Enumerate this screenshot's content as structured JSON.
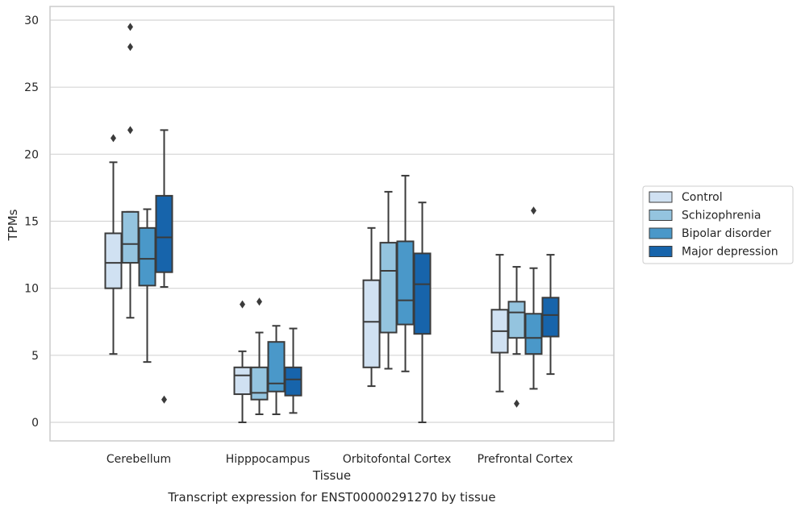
{
  "caption": "Transcript expression for ENST00000291270 by tissue",
  "chart_data": {
    "type": "boxplot",
    "xlabel": "Tissue",
    "ylabel": "TPMs",
    "ylim": [
      -1.3,
      31
    ],
    "yticks": [
      0,
      5,
      10,
      15,
      20,
      25,
      30
    ],
    "grid": "horizontal",
    "legend_position": "right",
    "categories": [
      "Cerebellum",
      "Hipppocampus",
      "Orbitofontal Cortex",
      "Prefrontal Cortex"
    ],
    "series": [
      {
        "name": "Control",
        "color": "#d0e1f2",
        "boxes": [
          {
            "whisker_low": 5.1,
            "q1": 10.0,
            "median": 11.9,
            "q3": 14.1,
            "whisker_high": 19.4,
            "outliers": [
              21.2
            ]
          },
          {
            "whisker_low": 0.0,
            "q1": 2.1,
            "median": 3.5,
            "q3": 4.1,
            "whisker_high": 5.3,
            "outliers": [
              8.8
            ]
          },
          {
            "whisker_low": 2.7,
            "q1": 4.1,
            "median": 7.5,
            "q3": 10.6,
            "whisker_high": 14.5,
            "outliers": []
          },
          {
            "whisker_low": 2.3,
            "q1": 5.2,
            "median": 6.8,
            "q3": 8.4,
            "whisker_high": 12.5,
            "outliers": []
          }
        ]
      },
      {
        "name": "Schizophrenia",
        "color": "#94c4df",
        "boxes": [
          {
            "whisker_low": 7.8,
            "q1": 11.9,
            "median": 13.3,
            "q3": 15.7,
            "whisker_high": 15.7,
            "outliers": [
              21.8,
              28.0,
              29.5
            ]
          },
          {
            "whisker_low": 0.6,
            "q1": 1.7,
            "median": 2.2,
            "q3": 4.1,
            "whisker_high": 6.7,
            "outliers": [
              9.0
            ]
          },
          {
            "whisker_low": 4.0,
            "q1": 6.7,
            "median": 11.3,
            "q3": 13.4,
            "whisker_high": 17.2,
            "outliers": []
          },
          {
            "whisker_low": 5.1,
            "q1": 6.3,
            "median": 8.2,
            "q3": 9.0,
            "whisker_high": 11.6,
            "outliers": [
              1.4
            ]
          }
        ]
      },
      {
        "name": "Bipolar disorder",
        "color": "#4a98c9",
        "boxes": [
          {
            "whisker_low": 4.5,
            "q1": 10.2,
            "median": 12.2,
            "q3": 14.5,
            "whisker_high": 15.9,
            "outliers": []
          },
          {
            "whisker_low": 0.6,
            "q1": 2.3,
            "median": 2.9,
            "q3": 6.0,
            "whisker_high": 7.2,
            "outliers": []
          },
          {
            "whisker_low": 3.8,
            "q1": 7.3,
            "median": 9.1,
            "q3": 13.5,
            "whisker_high": 18.4,
            "outliers": []
          },
          {
            "whisker_low": 2.5,
            "q1": 5.1,
            "median": 6.3,
            "q3": 8.1,
            "whisker_high": 11.5,
            "outliers": [
              15.8
            ]
          }
        ]
      },
      {
        "name": "Major depression",
        "color": "#1764ab",
        "boxes": [
          {
            "whisker_low": 10.1,
            "q1": 11.2,
            "median": 13.8,
            "q3": 16.9,
            "whisker_high": 21.8,
            "outliers": [
              1.7
            ]
          },
          {
            "whisker_low": 0.7,
            "q1": 2.0,
            "median": 3.2,
            "q3": 4.1,
            "whisker_high": 7.0,
            "outliers": []
          },
          {
            "whisker_low": 0.0,
            "q1": 6.6,
            "median": 10.3,
            "q3": 12.6,
            "whisker_high": 16.4,
            "outliers": []
          },
          {
            "whisker_low": 3.6,
            "q1": 6.4,
            "median": 8.0,
            "q3": 9.3,
            "whisker_high": 12.5,
            "outliers": []
          }
        ]
      }
    ]
  }
}
